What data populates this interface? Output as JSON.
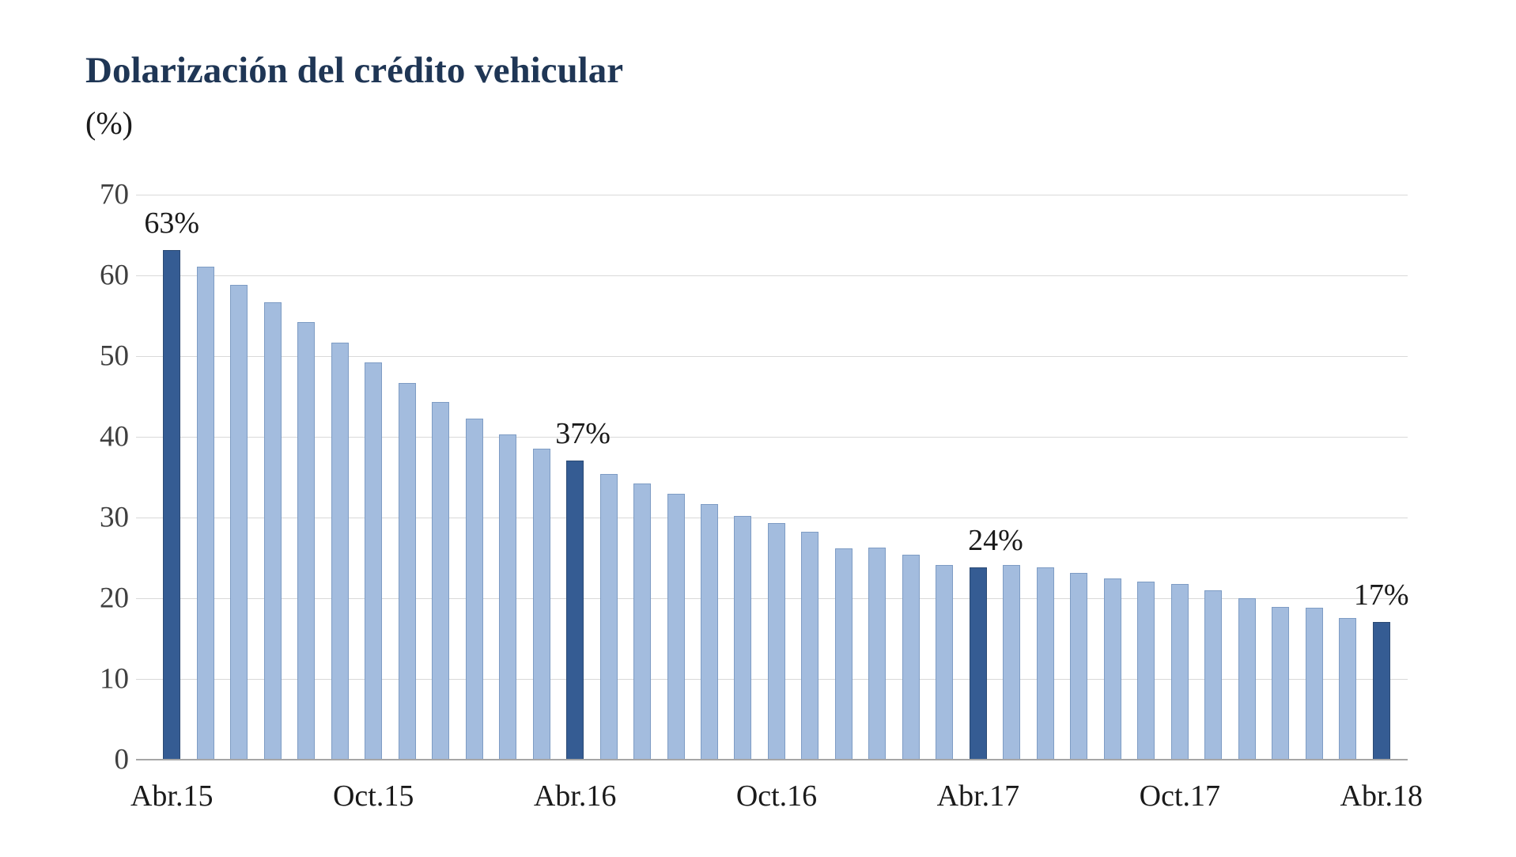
{
  "title": "Dolarización del crédito vehicular",
  "subtitle": "(%)",
  "colors": {
    "title": "#1F3655",
    "text": "#1A1A1A",
    "tick_text": "#3F3F3F",
    "bar_light": "#A3BCDE",
    "bar_light_border": "#7E9CC4",
    "bar_dark": "#355C93",
    "bar_dark_border": "#2B4A74",
    "gridline": "#D9D9D9",
    "axis_line": "#A6A6A6"
  },
  "chart_data": {
    "type": "bar",
    "title": "Dolarización del crédito vehicular",
    "ylabel": "(%)",
    "ylim": [
      0,
      70
    ],
    "yticks": [
      0,
      10,
      20,
      30,
      40,
      50,
      60,
      70
    ],
    "grid": true,
    "legend": false,
    "x_axis_ticks": [
      {
        "label": "Abr.15",
        "bar_index": 0
      },
      {
        "label": "Oct.15",
        "bar_index": 6
      },
      {
        "label": "Abr.16",
        "bar_index": 12
      },
      {
        "label": "Oct.16",
        "bar_index": 18
      },
      {
        "label": "Abr.17",
        "bar_index": 24
      },
      {
        "label": "Oct.17",
        "bar_index": 30
      },
      {
        "label": "Abr.18",
        "bar_index": 36
      }
    ],
    "values": [
      63,
      61,
      58.7,
      56.6,
      54.1,
      51.6,
      49.1,
      46.6,
      44.2,
      42.2,
      40.2,
      38.4,
      37,
      35.3,
      34.1,
      32.8,
      31.6,
      30.1,
      29.2,
      28.1,
      26.1,
      26.2,
      25.3,
      24.0,
      23.7,
      24.0,
      23.7,
      23.0,
      22.4,
      22.0,
      21.7,
      20.9,
      19.9,
      18.8,
      18.7,
      17.5,
      17
    ],
    "highlighted_bars": [
      {
        "index": 0,
        "label": "63%",
        "label_x_offset": 0
      },
      {
        "index": 12,
        "label": "37%",
        "label_x_offset": 10
      },
      {
        "index": 24,
        "label": "24%",
        "label_x_offset": 22
      },
      {
        "index": 36,
        "label": "17%",
        "label_x_offset": 0
      }
    ]
  }
}
